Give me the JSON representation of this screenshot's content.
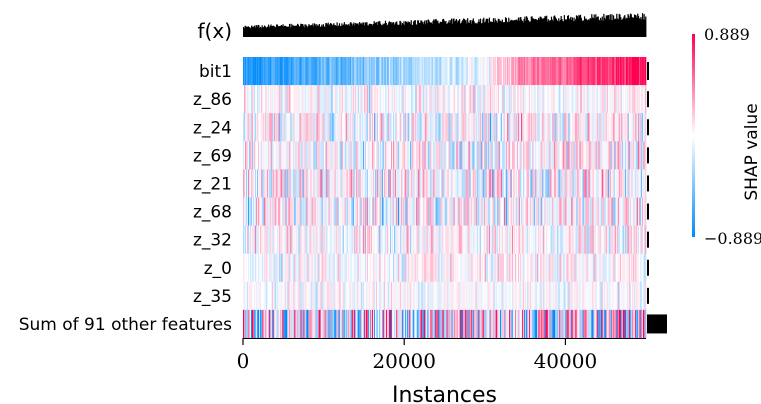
{
  "chart_data": {
    "type": "heatmap",
    "title": "",
    "xlabel": "Instances",
    "ylabel": "",
    "x_ticks": [
      0,
      20000,
      40000
    ],
    "xlim": [
      0,
      50000
    ],
    "top_row_label": "f(x)",
    "features": [
      "bit1",
      "z_86",
      "z_24",
      "z_69",
      "z_21",
      "z_68",
      "z_32",
      "z_0",
      "z_35",
      "Sum of 91 other features"
    ],
    "colorbar": {
      "label": "SHAP value",
      "max_label": "0.889",
      "min_label": "−0.889",
      "vmax": 0.889,
      "vmin": -0.889,
      "colors": [
        "#008bfb",
        "#ffffff",
        "#ff0051"
      ]
    },
    "bit1_trend": [
      {
        "x": 0,
        "value": -0.8
      },
      {
        "x": 20000,
        "value": -0.35
      },
      {
        "x": 30000,
        "value": -0.05
      },
      {
        "x": 35000,
        "value": 0.45
      },
      {
        "x": 49500,
        "value": 0.85
      }
    ],
    "feature_scale": [
      0.889,
      0.12,
      0.18,
      0.2,
      0.22,
      0.2,
      0.15,
      0.12,
      0.1,
      0.6
    ],
    "feature_importance_relative": [
      0.02,
      0.004,
      0.004,
      0.004,
      0.004,
      0.004,
      0.004,
      0.004,
      0.004,
      0.25
    ]
  }
}
